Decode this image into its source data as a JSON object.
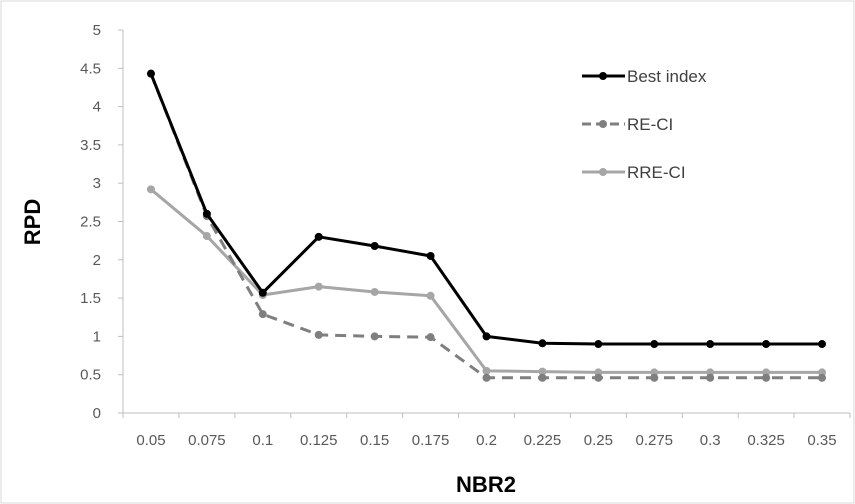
{
  "chart_data": {
    "type": "line",
    "title": "",
    "xlabel": "NBR2",
    "ylabel": "RPD",
    "categories": [
      "0.05",
      "0.075",
      "0.1",
      "0.125",
      "0.15",
      "0.175",
      "0.2",
      "0.225",
      "0.25",
      "0.275",
      "0.3",
      "0.325",
      "0.35"
    ],
    "ylim": [
      0,
      5
    ],
    "yticks": [
      "0",
      "0.5",
      "1",
      "1.5",
      "2",
      "2.5",
      "3",
      "3.5",
      "4",
      "4.5",
      "5"
    ],
    "grid": false,
    "legend_position": "top-right",
    "series": [
      {
        "name": "Best index",
        "color": "#000000",
        "dash": "solid",
        "values": [
          4.43,
          2.6,
          1.57,
          2.3,
          2.18,
          2.05,
          1.0,
          0.91,
          0.9,
          0.9,
          0.9,
          0.9,
          0.9
        ]
      },
      {
        "name": "RE-CI",
        "color": "#7f7f7f",
        "dash": "dashed",
        "values": [
          4.43,
          2.57,
          1.29,
          1.02,
          1.0,
          0.99,
          0.46,
          0.46,
          0.46,
          0.46,
          0.46,
          0.46,
          0.46
        ]
      },
      {
        "name": "RRE-CI",
        "color": "#a6a6a6",
        "dash": "solid",
        "values": [
          2.92,
          2.31,
          1.54,
          1.65,
          1.58,
          1.53,
          0.55,
          0.54,
          0.53,
          0.53,
          0.53,
          0.53,
          0.53
        ]
      }
    ]
  }
}
